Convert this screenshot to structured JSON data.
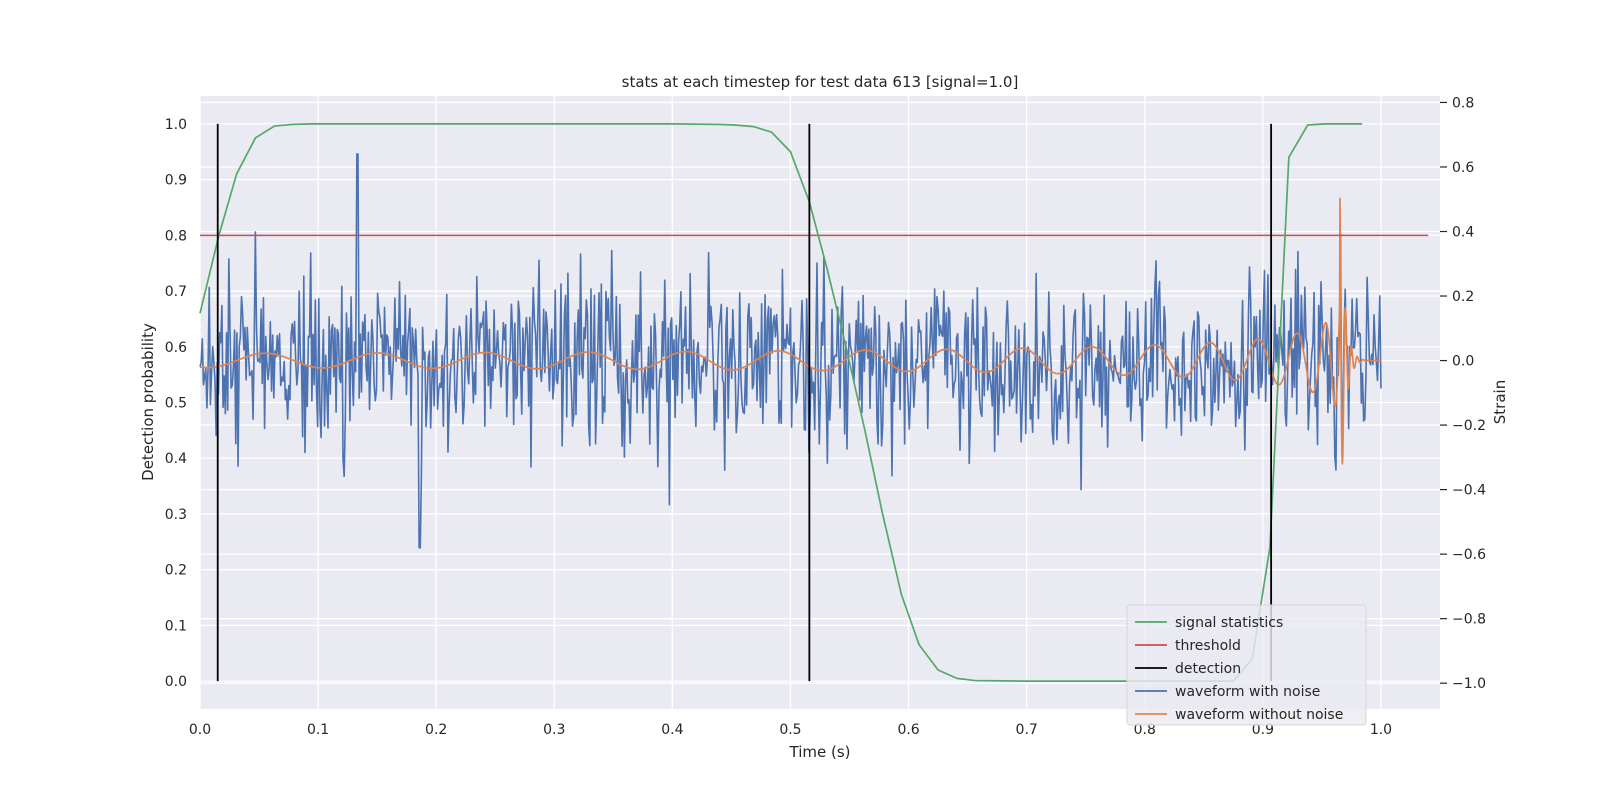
{
  "chart_data": {
    "type": "line",
    "title": "stats at each timestep for test data 613 [signal=1.0]",
    "xlabel": "Time (s)",
    "ylabel_left": "Detection probability",
    "ylabel_right": "Strain",
    "xlim": [
      0.0,
      1.05
    ],
    "ylim_left": [
      -0.05,
      1.05
    ],
    "ylim_right": [
      -1.08,
      0.82
    ],
    "xticks": [
      "0.0",
      "0.1",
      "0.2",
      "0.3",
      "0.4",
      "0.5",
      "0.6",
      "0.7",
      "0.8",
      "0.9",
      "1.0"
    ],
    "yticks_left": [
      "0.0",
      "0.1",
      "0.2",
      "0.3",
      "0.4",
      "0.5",
      "0.6",
      "0.7",
      "0.8",
      "0.9",
      "1.0"
    ],
    "yticks_right": [
      "−1.0",
      "−0.8",
      "−0.6",
      "−0.4",
      "−0.2",
      "0.0",
      "0.2",
      "0.4",
      "0.6",
      "0.8"
    ],
    "grid": true,
    "legend_position": "bottom-right",
    "threshold": 0.8,
    "detections": [
      0.015,
      0.516,
      0.907
    ],
    "signal_statistics": {
      "x": [
        0.0,
        0.016,
        0.031,
        0.047,
        0.063,
        0.078,
        0.094,
        0.2,
        0.3,
        0.4,
        0.44,
        0.453,
        0.469,
        0.484,
        0.5,
        0.516,
        0.531,
        0.547,
        0.563,
        0.578,
        0.594,
        0.609,
        0.625,
        0.641,
        0.656,
        0.7,
        0.8,
        0.875,
        0.891,
        0.906,
        0.922,
        0.938,
        0.953,
        0.969,
        0.984
      ],
      "y": [
        0.66,
        0.8,
        0.91,
        0.975,
        0.996,
        0.999,
        1.0,
        1.0,
        1.0,
        1.0,
        0.999,
        0.998,
        0.995,
        0.985,
        0.95,
        0.86,
        0.74,
        0.6,
        0.45,
        0.3,
        0.155,
        0.065,
        0.02,
        0.005,
        0.001,
        0.0,
        0.0,
        0.0,
        0.04,
        0.24,
        0.94,
        0.998,
        1.0,
        1.0,
        1.0
      ]
    },
    "series": [
      {
        "name": "signal statistics",
        "color": "#55a868",
        "axis": "left"
      },
      {
        "name": "threshold",
        "color": "#c44e52",
        "axis": "left"
      },
      {
        "name": "detection",
        "color": "#000000",
        "axis": "left"
      },
      {
        "name": "waveform with noise",
        "color": "#4c72b0",
        "axis": "right"
      },
      {
        "name": "waveform without noise",
        "color": "#dd8452",
        "axis": "right"
      }
    ]
  }
}
